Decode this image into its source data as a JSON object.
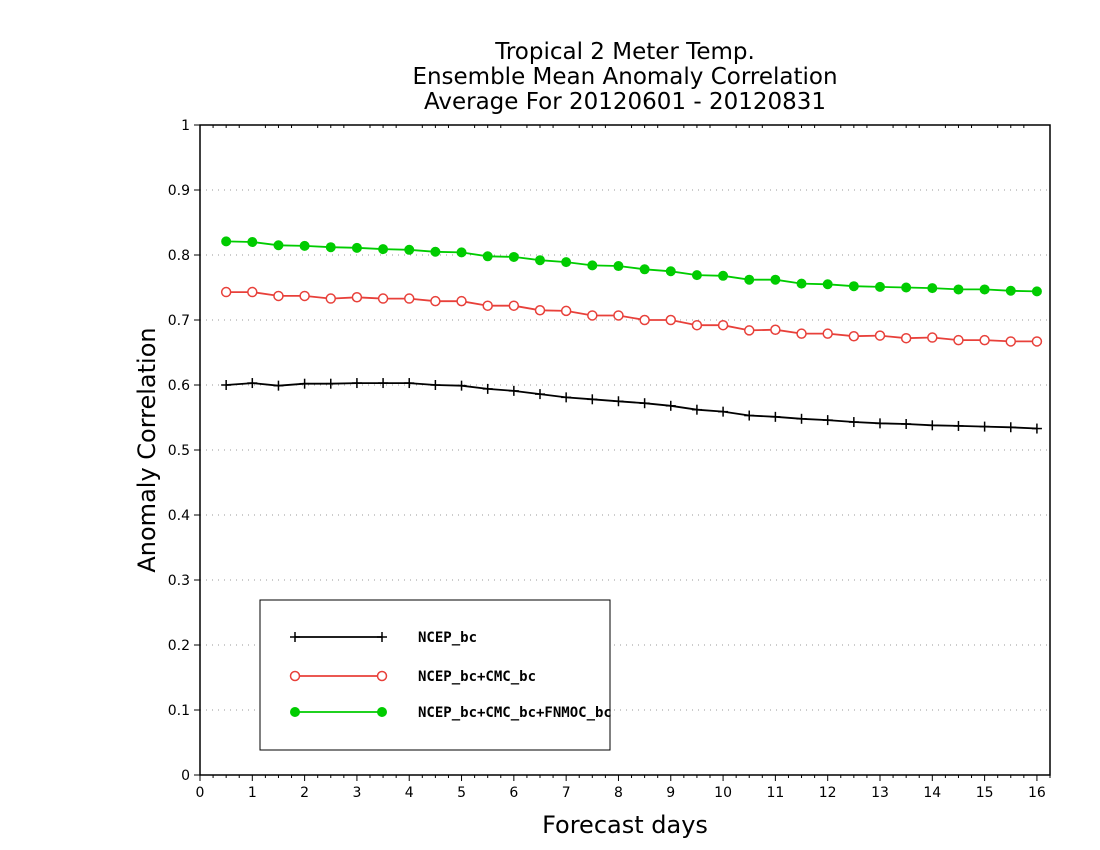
{
  "chart_data": {
    "type": "line",
    "title": [
      "Tropical 2 Meter Temp.",
      "Ensemble Mean Anomaly Correlation",
      "Average For 20120601 - 20120831"
    ],
    "xlabel": "Forecast days",
    "ylabel": "Anomaly Correlation",
    "xlim": [
      0,
      16.25
    ],
    "ylim": [
      0,
      1
    ],
    "xticks": [
      "0",
      "1",
      "2",
      "3",
      "4",
      "5",
      "6",
      "7",
      "8",
      "9",
      "10",
      "11",
      "12",
      "13",
      "14",
      "15",
      "16"
    ],
    "yticks": [
      "0",
      "0.1",
      "0.2",
      "0.3",
      "0.4",
      "0.5",
      "0.6",
      "0.7",
      "0.8",
      "0.9",
      "1"
    ],
    "grid": "horizontal-dotted",
    "legend_position": "bottom-left",
    "x": [
      0.5,
      1,
      1.5,
      2,
      2.5,
      3,
      3.5,
      4,
      4.5,
      5,
      5.5,
      6,
      6.5,
      7,
      7.5,
      8,
      8.5,
      9,
      9.5,
      10,
      10.5,
      11,
      11.5,
      12,
      12.5,
      13,
      13.5,
      14,
      14.5,
      15,
      15.5,
      16
    ],
    "series": [
      {
        "name": "NCEP_bc",
        "color": "#000000",
        "marker": "plus",
        "values": [
          0.6,
          0.603,
          0.599,
          0.602,
          0.602,
          0.603,
          0.603,
          0.603,
          0.6,
          0.599,
          0.594,
          0.591,
          0.586,
          0.581,
          0.578,
          0.575,
          0.572,
          0.568,
          0.562,
          0.559,
          0.553,
          0.551,
          0.548,
          0.546,
          0.543,
          0.541,
          0.54,
          0.538,
          0.537,
          0.536,
          0.535,
          0.533
        ]
      },
      {
        "name": "NCEP_bc+CMC_bc",
        "color": "#e8403a",
        "marker": "open-circle",
        "values": [
          0.743,
          0.743,
          0.737,
          0.737,
          0.733,
          0.735,
          0.733,
          0.733,
          0.729,
          0.729,
          0.722,
          0.722,
          0.715,
          0.714,
          0.707,
          0.707,
          0.7,
          0.7,
          0.692,
          0.692,
          0.684,
          0.685,
          0.679,
          0.679,
          0.675,
          0.676,
          0.672,
          0.673,
          0.669,
          0.669,
          0.667,
          0.667
        ]
      },
      {
        "name": "NCEP_bc+CMC_bc+FNMOC_bc",
        "color": "#00cc00",
        "marker": "filled-circle",
        "values": [
          0.821,
          0.82,
          0.815,
          0.814,
          0.812,
          0.811,
          0.809,
          0.808,
          0.805,
          0.804,
          0.798,
          0.797,
          0.792,
          0.789,
          0.784,
          0.783,
          0.778,
          0.775,
          0.769,
          0.768,
          0.762,
          0.762,
          0.756,
          0.755,
          0.752,
          0.751,
          0.75,
          0.749,
          0.747,
          0.747,
          0.745,
          0.744
        ]
      }
    ]
  }
}
